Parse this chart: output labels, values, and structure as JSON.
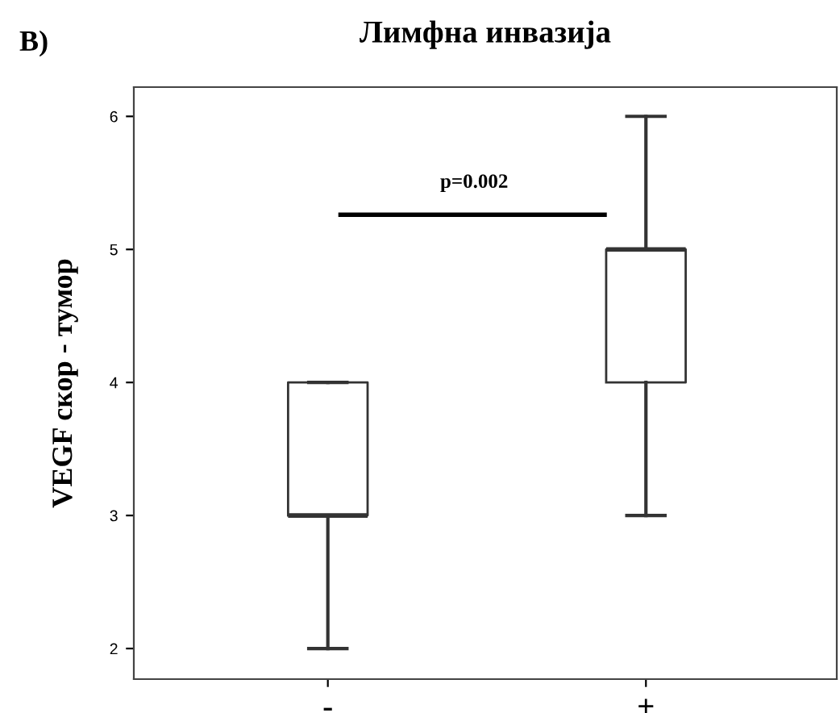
{
  "chart_data": {
    "type": "box",
    "title": "Лимфна инвазија",
    "ylabel": "VEGF скор - тумор",
    "categories": [
      "-",
      "+"
    ],
    "boxes": [
      {
        "low": 2,
        "q1": 3,
        "median": 3,
        "q3": 4,
        "high": 4
      },
      {
        "low": 3,
        "q1": 4,
        "median": 5,
        "q3": 5,
        "high": 6
      }
    ],
    "ylim": [
      1.77,
      6.22
    ],
    "yticks": [
      2,
      3,
      4,
      5,
      6
    ],
    "grid": false,
    "legend": false,
    "annotations": [
      "В)",
      "p=0.002"
    ]
  }
}
